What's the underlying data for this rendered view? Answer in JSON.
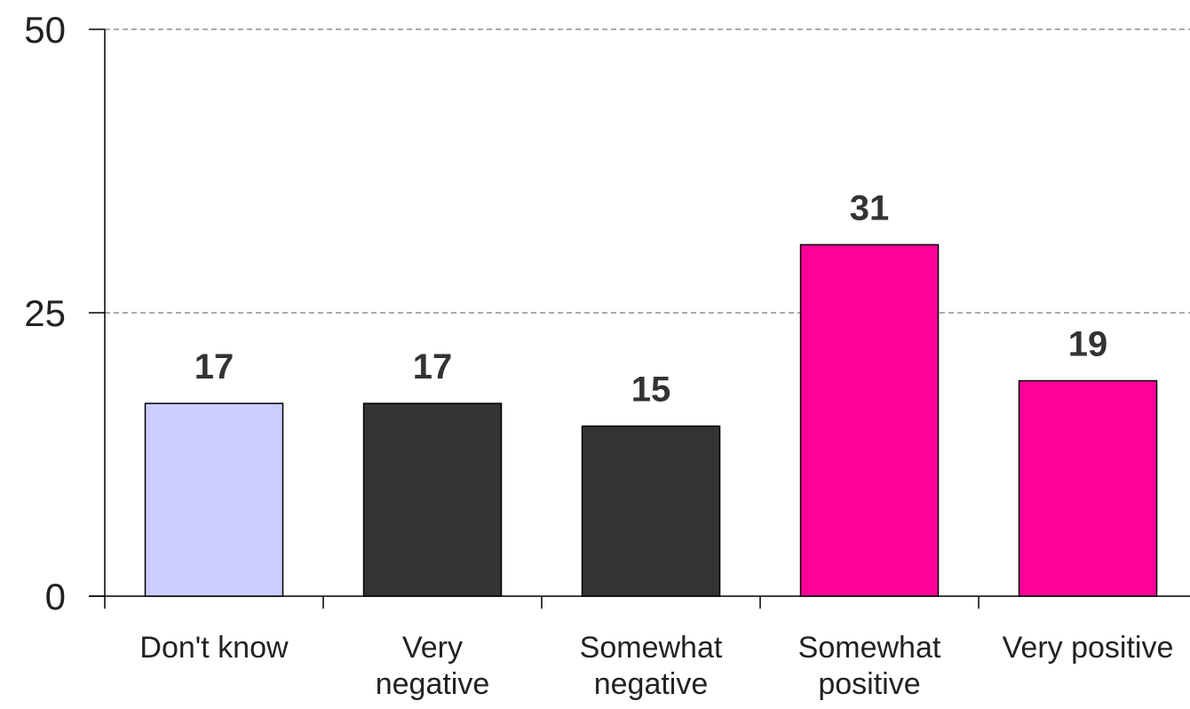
{
  "chart_data": {
    "type": "bar",
    "title": "",
    "xlabel": "",
    "ylabel": "",
    "categories": [
      [
        "Don't know"
      ],
      [
        "Very",
        "negative"
      ],
      [
        "Somewhat",
        "negative"
      ],
      [
        "Somewhat",
        "positive"
      ],
      [
        "Very positive"
      ]
    ],
    "values": [
      17,
      17,
      15,
      31,
      19
    ],
    "value_labels": [
      "17",
      "17",
      "15",
      "31",
      "19"
    ],
    "colors": [
      "#ccccff",
      "#333333",
      "#333333",
      "#ff0099",
      "#ff0099"
    ],
    "ylim": [
      0,
      50
    ],
    "y_ticks": [
      0,
      25,
      50
    ],
    "y_tick_labels": [
      "0",
      "25",
      "50"
    ],
    "grid": "dashed horizontal",
    "legend": "none"
  }
}
